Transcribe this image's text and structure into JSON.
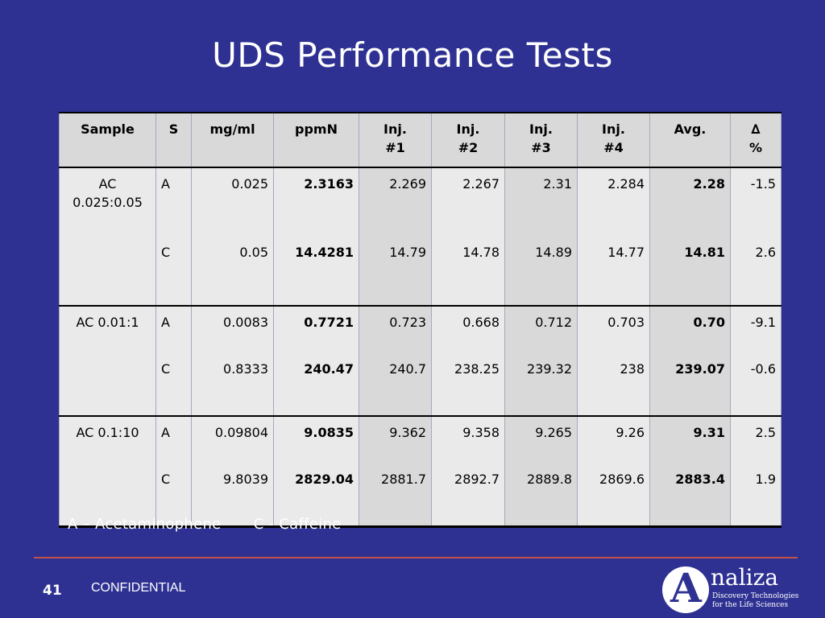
{
  "slide": {
    "title": "UDS Performance Tests",
    "legend": [
      "A – Acetaminophene",
      "C - Caffeine"
    ],
    "page_number": "41",
    "footer_label": "CONFIDENTIAL"
  },
  "logo": {
    "letter": "A",
    "name": "naliza",
    "tagline_line1": "Discovery Technologies",
    "tagline_line2": "for the Life Sciences"
  },
  "table": {
    "headers": [
      {
        "line1": "Sample",
        "line2": ""
      },
      {
        "line1": "S",
        "line2": ""
      },
      {
        "line1": "mg/ml",
        "line2": ""
      },
      {
        "line1": "ppmN",
        "line2": ""
      },
      {
        "line1": "Inj.",
        "line2": "#1"
      },
      {
        "line1": "Inj.",
        "line2": "#2"
      },
      {
        "line1": "Inj.",
        "line2": "#3"
      },
      {
        "line1": "Inj.",
        "line2": "#4"
      },
      {
        "line1": "Avg.",
        "line2": ""
      },
      {
        "line1": "∆",
        "line2": "%"
      }
    ],
    "rows": [
      {
        "sample": "AC 0.025:0.05",
        "s": "A",
        "mgml": "0.025",
        "ppmn": "2.3163",
        "inj1": "2.269",
        "inj2": "2.267",
        "inj3": "2.31",
        "inj4": "2.284",
        "avg": "2.28",
        "delta": "-1.5"
      },
      {
        "sample": "",
        "s": "C",
        "mgml": "0.05",
        "ppmn": "14.4281",
        "inj1": "14.79",
        "inj2": "14.78",
        "inj3": "14.89",
        "inj4": "14.77",
        "avg": "14.81",
        "delta": "2.6"
      },
      {
        "sample": "AC 0.01:1",
        "s": "A",
        "mgml": "0.0083",
        "ppmn": "0.7721",
        "inj1": "0.723",
        "inj2": "0.668",
        "inj3": "0.712",
        "inj4": "0.703",
        "avg": "0.70",
        "delta": "-9.1"
      },
      {
        "sample": "",
        "s": "C",
        "mgml": "0.8333",
        "ppmn": "240.47",
        "inj1": "240.7",
        "inj2": "238.25",
        "inj3": "239.32",
        "inj4": "238",
        "avg": "239.07",
        "delta": "-0.6"
      },
      {
        "sample": "AC 0.1:10",
        "s": "A",
        "mgml": "0.09804",
        "ppmn": "9.0835",
        "inj1": "9.362",
        "inj2": "9.358",
        "inj3": "9.265",
        "inj4": "9.26",
        "avg": "9.31",
        "delta": "2.5"
      },
      {
        "sample": "",
        "s": "C",
        "mgml": "9.8039",
        "ppmn": "2829.04",
        "inj1": "2881.7",
        "inj2": "2892.7",
        "inj3": "2889.8",
        "inj4": "2869.6",
        "avg": "2883.4",
        "delta": "1.9"
      }
    ]
  }
}
